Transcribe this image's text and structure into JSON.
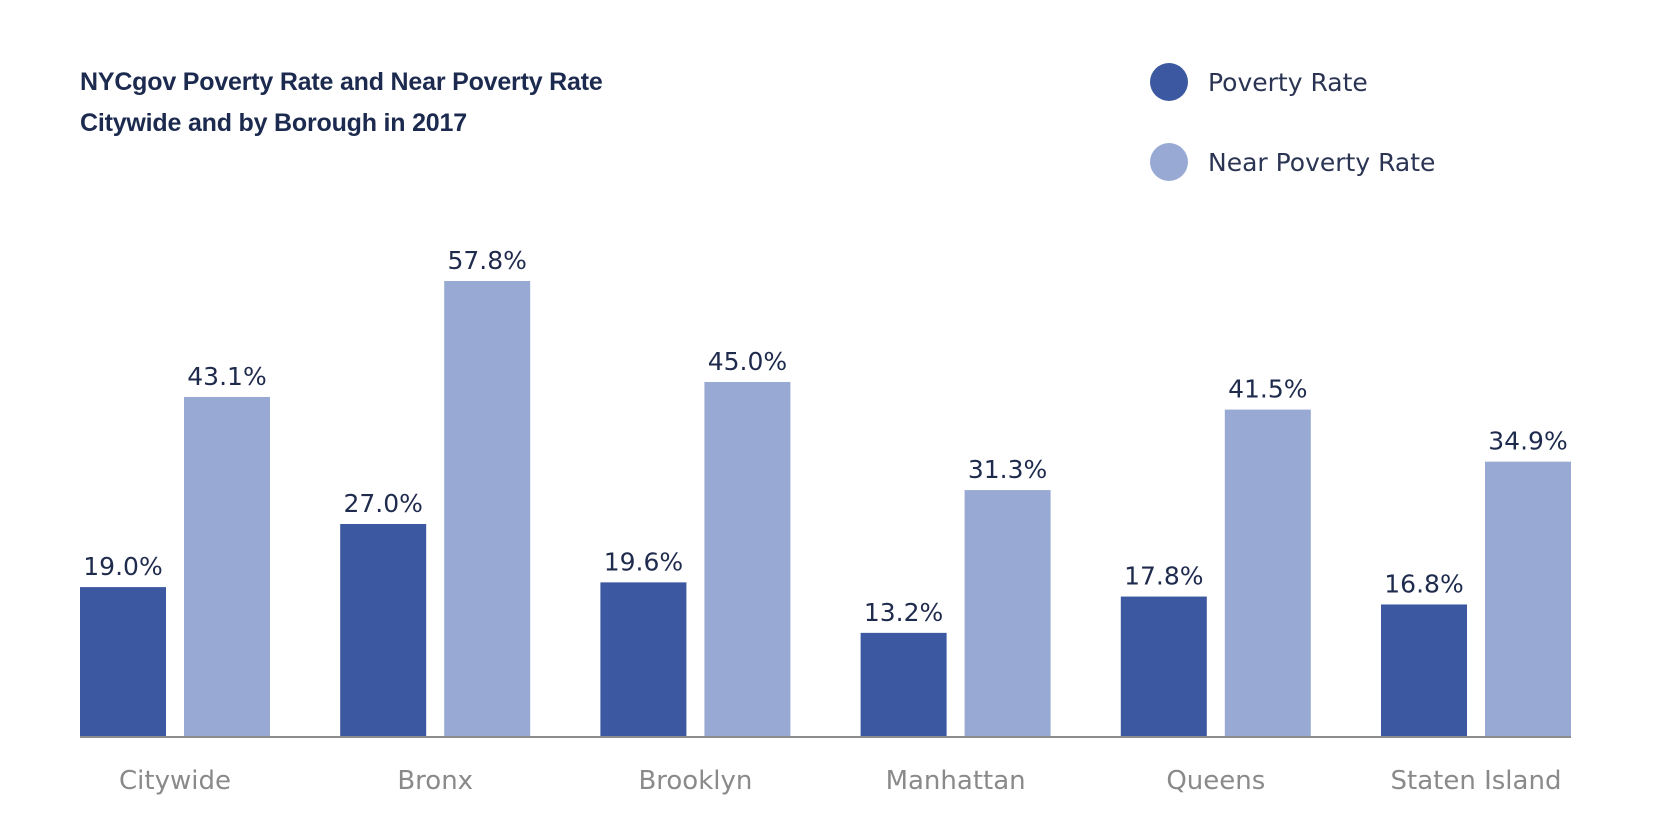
{
  "chart_data": {
    "type": "bar",
    "title_lines": [
      "NYCgov Poverty Rate and Near Poverty Rate",
      "Citywide and by Borough in 2017"
    ],
    "categories": [
      "Citywide",
      "Bronx",
      "Brooklyn",
      "Manhattan",
      "Queens",
      "Staten Island"
    ],
    "series": [
      {
        "name": "Poverty Rate",
        "color": "#3c58a0",
        "values": [
          19.0,
          27.0,
          19.6,
          13.2,
          17.8,
          16.8
        ],
        "labels": [
          "19.0%",
          "27.0%",
          "19.6%",
          "13.2%",
          "17.8%",
          "16.8%"
        ]
      },
      {
        "name": "Near Poverty Rate",
        "color": "#98aad4",
        "values": [
          43.1,
          57.8,
          45.0,
          31.3,
          41.5,
          34.9
        ],
        "labels": [
          "43.1%",
          "57.8%",
          "45.0%",
          "31.3%",
          "41.5%",
          "34.9%"
        ]
      }
    ],
    "ylim": [
      0,
      57.8
    ],
    "grid": false,
    "legend_position": "top-right"
  }
}
